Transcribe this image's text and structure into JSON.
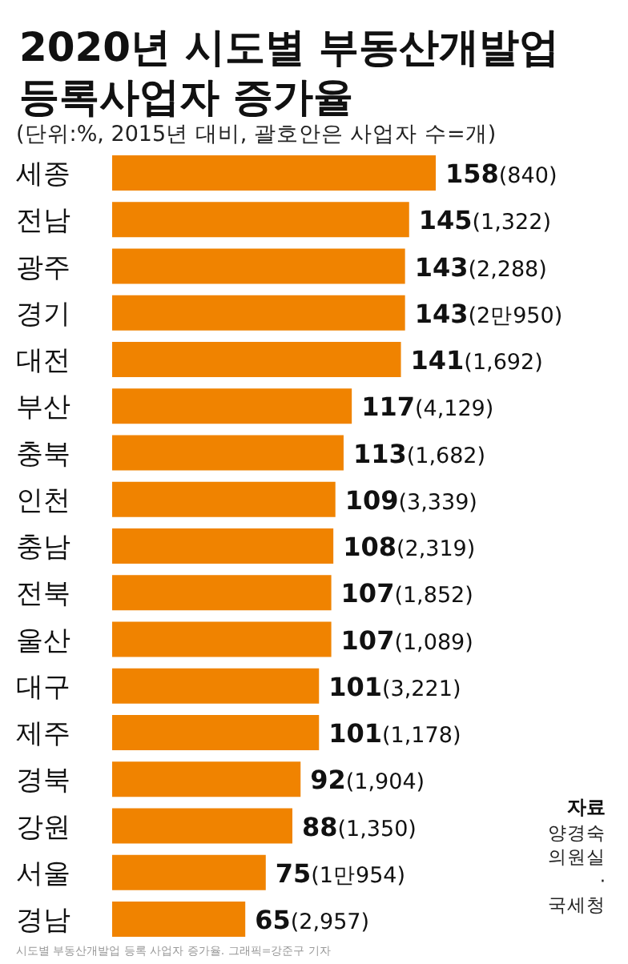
{
  "chart_data": {
    "type": "bar",
    "orientation": "horizontal",
    "title": "2020년 시도별 부동산개발업 등록사업자 증가율",
    "subtitle": "(단위:%, 2015년 대비, 괄호안은 사업자 수=개)",
    "categories": [
      "세종",
      "전남",
      "광주",
      "경기",
      "대전",
      "부산",
      "충북",
      "인천",
      "충남",
      "전북",
      "울산",
      "대구",
      "제주",
      "경북",
      "강원",
      "서울",
      "경남"
    ],
    "values": [
      158,
      145,
      143,
      143,
      141,
      117,
      113,
      109,
      108,
      107,
      107,
      101,
      101,
      92,
      88,
      75,
      65
    ],
    "value_labels": [
      "158(840)",
      "145(1,322)",
      "143(2,288)",
      "143(2만950)",
      "141(1,692)",
      "117(4,129)",
      "113(1,682)",
      "109(3,339)",
      "108(2,319)",
      "107(1,852)",
      "107(1,089)",
      "101(3,221)",
      "101(1,178)",
      "92(1,904)",
      "88(1,350)",
      "75(1만954)",
      "65(2,957)"
    ],
    "color": "#f08300",
    "annotations": [
      "자료",
      "양경숙 의원실 · 국세청",
      "시도별 부동산개발업 등록 사업자 증가율. 그래픽=강준구 기자"
    ]
  }
}
